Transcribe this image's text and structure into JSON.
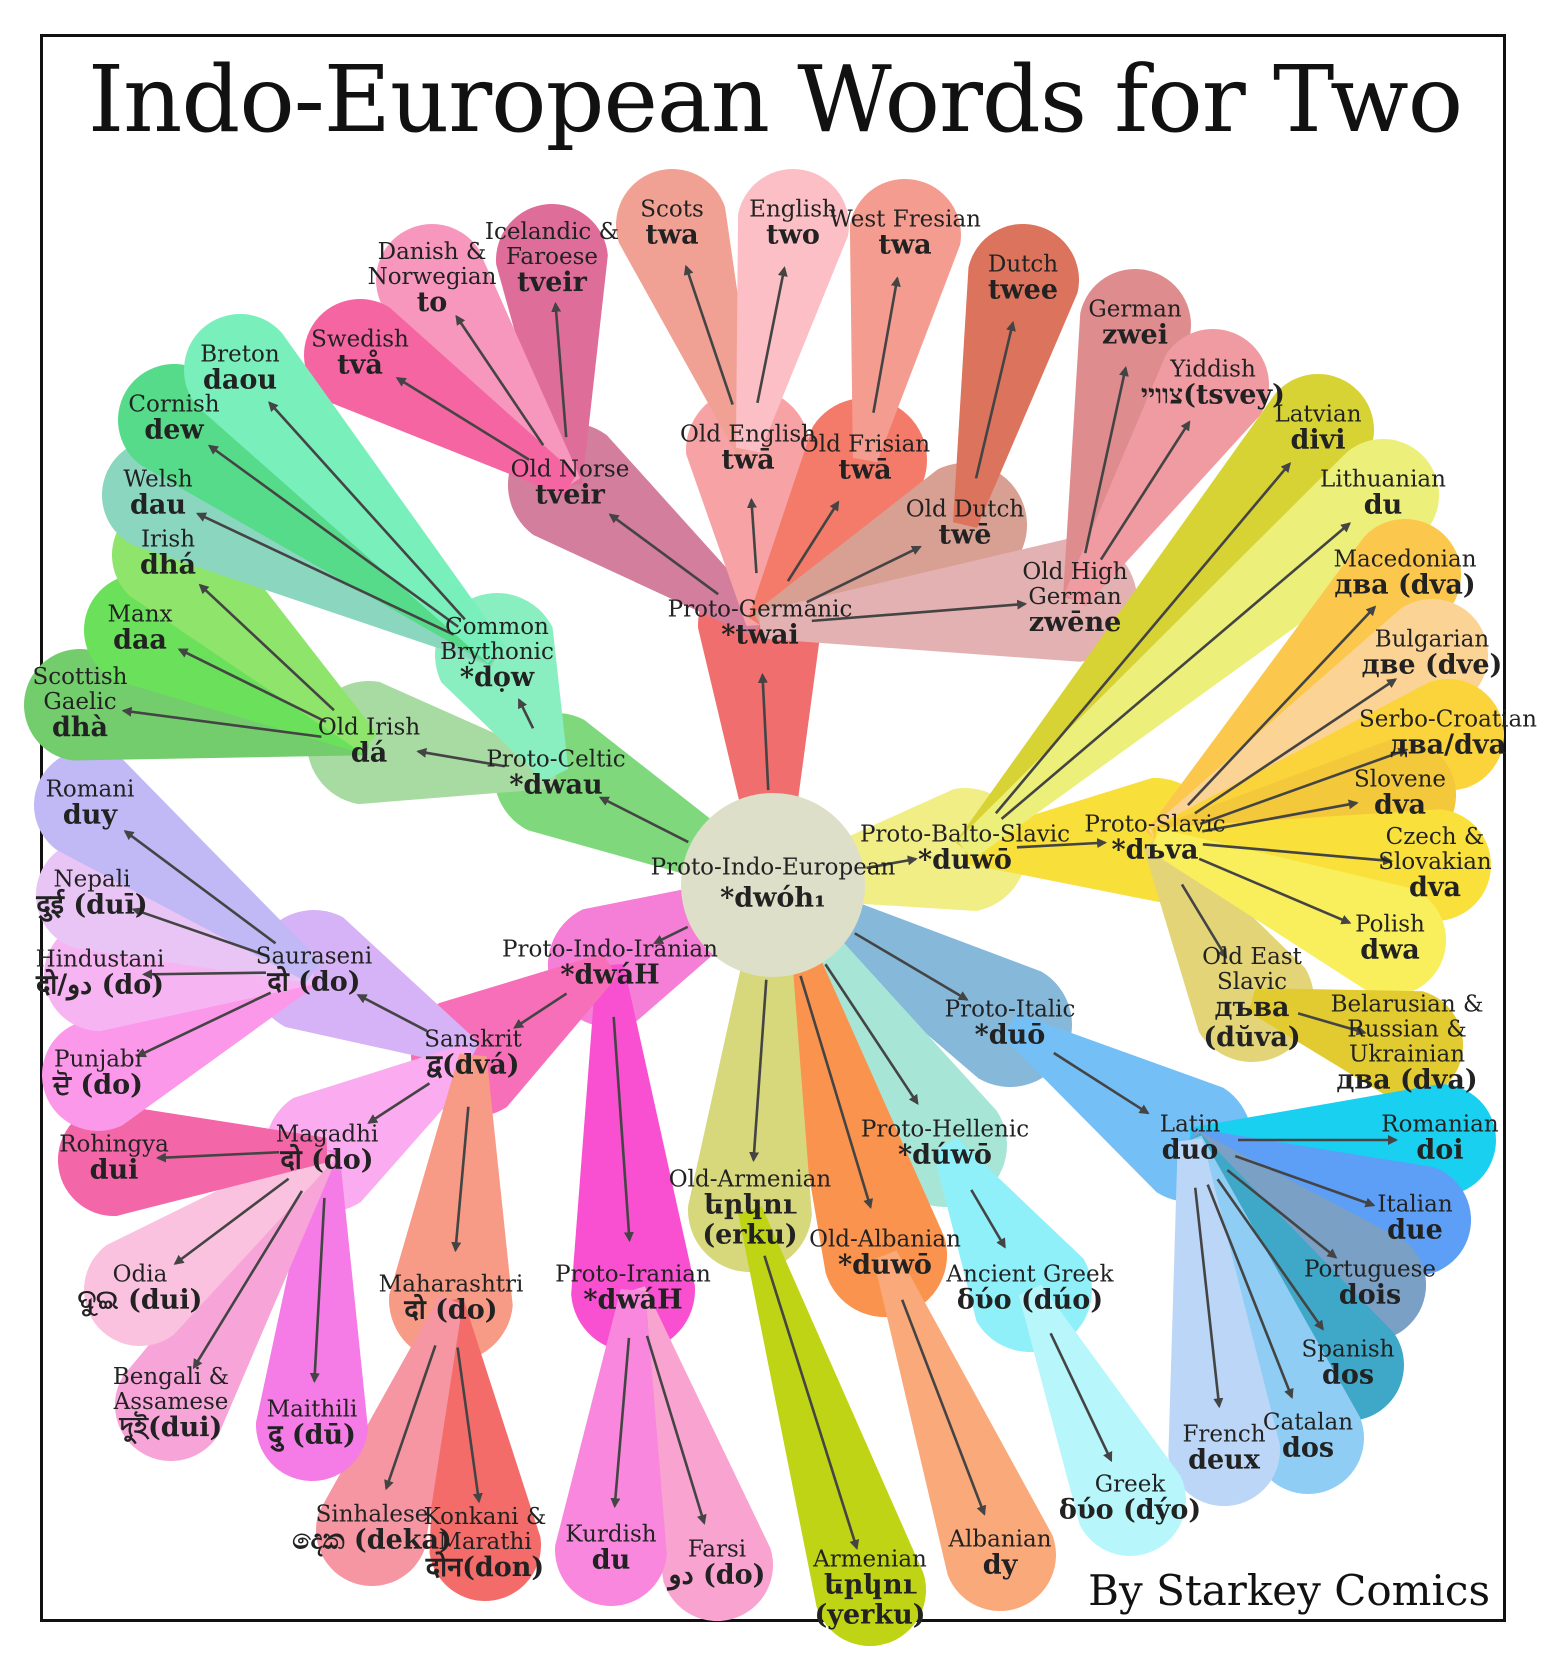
{
  "title": "Indo-European Words for Two",
  "credit": "By Starkey Comics",
  "root": {
    "name": "Proto-Indo-European",
    "word": "*dwóh₁",
    "color": "#dddfc8"
  },
  "nodes": [
    {
      "id": "gem",
      "parent": "root",
      "name": "Proto-Germanic",
      "word": "*twai",
      "color": "#f06e6e"
    },
    {
      "id": "bsl",
      "parent": "root",
      "name": "Proto-Balto-Slavic",
      "word": "*duwō",
      "color": "#f2ee86"
    },
    {
      "id": "sla",
      "parent": "bsl",
      "name": "Proto-Slavic",
      "word": "*dъva",
      "color": "#f9df3a"
    },
    {
      "id": "ita",
      "parent": "root",
      "name": "Proto-Italic",
      "word": "*duō",
      "color": "#86b8da"
    },
    {
      "id": "lat",
      "parent": "ita",
      "name": "Latin",
      "word": "duo",
      "color": "#74bff6"
    },
    {
      "id": "hel",
      "parent": "root",
      "name": "Proto-Hellenic",
      "word": "*dúwō",
      "color": "#a7e6d7"
    },
    {
      "id": "agr",
      "parent": "hel",
      "name": "Ancient Greek",
      "word": "δύο (dúo)",
      "color": "#8ff0fa"
    },
    {
      "id": "alb",
      "parent": "root",
      "name": "Old-Albanian",
      "word": "*duwō",
      "color": "#fa934d"
    },
    {
      "id": "arm",
      "parent": "root",
      "name": "Old-Armenian",
      "word": "երկու (erku)",
      "color": "#d7d87c"
    },
    {
      "id": "iir",
      "parent": "root",
      "name": "Proto-Indo-Iranian",
      "word": "*dwáH",
      "color": "#f57fd6"
    },
    {
      "id": "ira",
      "parent": "iir",
      "name": "Proto-Iranian",
      "word": "*dwáH",
      "color": "#f94fd1"
    },
    {
      "id": "skt",
      "parent": "iir",
      "name": "Sanskrit",
      "word": "द्व(dvá)",
      "color": "#f76fb8"
    },
    {
      "id": "sau",
      "parent": "skt",
      "name": "Sauraseni",
      "word": "दो (do)",
      "color": "#d6b2f7"
    },
    {
      "id": "mag",
      "parent": "skt",
      "name": "Magadhi",
      "word": "दो (do)",
      "color": "#fbabf0"
    },
    {
      "id": "mah",
      "parent": "skt",
      "name": "Maharashtri",
      "word": "दो (do)",
      "color": "#f79a86"
    },
    {
      "id": "cel",
      "parent": "root",
      "name": "Proto-Celtic",
      "word": "*dwau",
      "color": "#7fd97c"
    },
    {
      "id": "oir",
      "parent": "cel",
      "name": "Old Irish",
      "word": "dá",
      "color": "#a8dba2"
    },
    {
      "id": "bry",
      "parent": "cel",
      "name": "Common Brythonic",
      "word": "*dọw",
      "color": "#8aefc0"
    },
    {
      "id": "non",
      "parent": "gem",
      "name": "Old Norse",
      "word": "tveir",
      "color": "#d27e9c"
    },
    {
      "id": "oen",
      "parent": "gem",
      "name": "Old English",
      "word": "twā",
      "color": "#f7a3a5"
    },
    {
      "id": "ofr",
      "parent": "gem",
      "name": "Old Frisian",
      "word": "twā",
      "color": "#f47b6a"
    },
    {
      "id": "odu",
      "parent": "gem",
      "name": "Old Dutch",
      "word": "twē",
      "color": "#d89f93"
    },
    {
      "id": "ohg",
      "parent": "gem",
      "name": "Old High German",
      "word": "zwēne",
      "color": "#e3b1b1"
    },
    {
      "id": "oes",
      "parent": "sla",
      "name": "Old East Slavic",
      "word": "дъва (dŭva)",
      "color": "#e4d478"
    }
  ],
  "leaves": [
    {
      "parent": "non",
      "name": "Icelandic & Faroese",
      "word": "tveir",
      "color": "#df6d9a"
    },
    {
      "parent": "non",
      "name": "Danish & Norwegian",
      "word": "to",
      "color": "#f797bd"
    },
    {
      "parent": "non",
      "name": "Swedish",
      "word": "två",
      "color": "#f565a1"
    },
    {
      "parent": "oen",
      "name": "Scots",
      "word": "twa",
      "color": "#f0a193"
    },
    {
      "parent": "oen",
      "name": "English",
      "word": "two",
      "color": "#fbbfc5"
    },
    {
      "parent": "ofr",
      "name": "West Fresian",
      "word": "twa",
      "color": "#f49c8f"
    },
    {
      "parent": "odu",
      "name": "Dutch",
      "word": "twee",
      "color": "#dc735c"
    },
    {
      "parent": "ohg",
      "name": "German",
      "word": "zwei",
      "color": "#df8c8e"
    },
    {
      "parent": "ohg",
      "name": "Yiddish",
      "word": "צוויי(tsvey)",
      "color": "#f09aa2"
    },
    {
      "parent": "bsl",
      "name": "Latvian",
      "word": "divi",
      "color": "#d8d334"
    },
    {
      "parent": "bsl",
      "name": "Lithuanian",
      "word": "du",
      "color": "#ecf07a"
    },
    {
      "parent": "sla",
      "name": "Macedonian",
      "word": "два (dva)",
      "color": "#fbc84d"
    },
    {
      "parent": "sla",
      "name": "Bulgarian",
      "word": "две (dve)",
      "color": "#fbd394"
    },
    {
      "parent": "sla",
      "name": "Serbo-Croatian",
      "word": "два/dva",
      "color": "#fbd33b"
    },
    {
      "parent": "sla",
      "name": "Slovene",
      "word": "dva",
      "color": "#f3c83a"
    },
    {
      "parent": "sla",
      "name": "Czech & Slovakian",
      "word": "dva",
      "color": "#fae03a"
    },
    {
      "parent": "sla",
      "name": "Polish",
      "word": "dwa",
      "color": "#f9ee5c"
    },
    {
      "parent": "oes",
      "name": "Belarusian & Russian & Ukrainian",
      "word": "два (dva)",
      "color": "#e2cb30"
    },
    {
      "parent": "lat",
      "name": "Romanian",
      "word": "doi",
      "color": "#19d0f0"
    },
    {
      "parent": "lat",
      "name": "Italian",
      "word": "due",
      "color": "#5d9ef6"
    },
    {
      "parent": "lat",
      "name": "Portuguese",
      "word": "dois",
      "color": "#7aa0c6"
    },
    {
      "parent": "lat",
      "name": "Spanish",
      "word": "dos",
      "color": "#3fa8c8"
    },
    {
      "parent": "lat",
      "name": "Catalan",
      "word": "dos",
      "color": "#8fcdf5"
    },
    {
      "parent": "lat",
      "name": "French",
      "word": "deux",
      "color": "#bcd6f7"
    },
    {
      "parent": "agr",
      "name": "Greek",
      "word": "δύο (dýo)",
      "color": "#b7f6fb"
    },
    {
      "parent": "alb",
      "name": "Albanian",
      "word": "dy",
      "color": "#f9a97a"
    },
    {
      "parent": "arm",
      "name": "Armenian",
      "word": "երկու (yerku)",
      "color": "#bed414"
    },
    {
      "parent": "ira",
      "name": "Farsi",
      "word": "دو (do)",
      "color": "#f8a3d0"
    },
    {
      "parent": "ira",
      "name": "Kurdish",
      "word": "du",
      "color": "#f887dd"
    },
    {
      "parent": "mah",
      "name": "Konkani & Marathi",
      "word": "दोन(don)",
      "color": "#f36c6a"
    },
    {
      "parent": "mah",
      "name": "Sinhalese",
      "word": "දෙක (deka)",
      "color": "#f596a2"
    },
    {
      "parent": "mag",
      "name": "Maithili",
      "word": "दु (dū)",
      "color": "#f57be6"
    },
    {
      "parent": "mag",
      "name": "Bengali & Assamese",
      "word": "দুই(dui)",
      "color": "#f7a5d9"
    },
    {
      "parent": "mag",
      "name": "Odia",
      "word": "ଦୁଇ (dui)",
      "color": "#fbc2e0"
    },
    {
      "parent": "mag",
      "name": "Rohingya",
      "word": "dui",
      "color": "#f366a8"
    },
    {
      "parent": "sau",
      "name": "Punjabi",
      "word": "ਦੋ (do)",
      "color": "#fb98ea"
    },
    {
      "parent": "sau",
      "name": "Hindustani",
      "word": "दो/دو (do)",
      "color": "#f7b4f3"
    },
    {
      "parent": "sau",
      "name": "Nepali",
      "word": "दुई (duī)",
      "color": "#e8c5f4"
    },
    {
      "parent": "sau",
      "name": "Romani",
      "word": "duy",
      "color": "#c0b9f6"
    },
    {
      "parent": "oir",
      "name": "Scottish Gaelic",
      "word": "dhà",
      "color": "#73cd6d"
    },
    {
      "parent": "oir",
      "name": "Manx",
      "word": "daa",
      "color": "#6be05a"
    },
    {
      "parent": "oir",
      "name": "Irish",
      "word": "dhá",
      "color": "#8fe46b"
    },
    {
      "parent": "bry",
      "name": "Welsh",
      "word": "dau",
      "color": "#8ad6be"
    },
    {
      "parent": "bry",
      "name": "Cornish",
      "word": "dew",
      "color": "#55db8a"
    },
    {
      "parent": "bry",
      "name": "Breton",
      "word": "daou",
      "color": "#79efbc"
    }
  ]
}
